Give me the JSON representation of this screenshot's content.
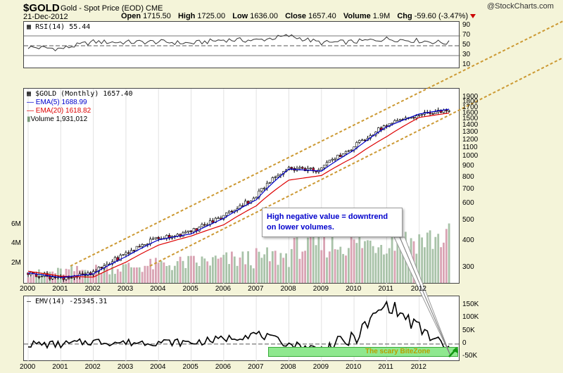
{
  "header": {
    "symbol": "$GOLD",
    "description": "Gold - Spot Price (EOD)",
    "exchange": "CME",
    "date": "21-Dec-2012",
    "open_label": "Open",
    "open": "1715.50",
    "high_label": "High",
    "high": "1725.00",
    "low_label": "Low",
    "low": "1636.00",
    "close_label": "Close",
    "close": "1657.40",
    "volume_label": "Volume",
    "volume": "1.9M",
    "chg_label": "Chg",
    "chg": "-59.60 (-3.47%)",
    "logo": "@StockCharts.com"
  },
  "rsi_panel": {
    "label": "RSI(14) 55.44",
    "ticks": [
      "90",
      "70",
      "50",
      "30",
      "10"
    ],
    "overbought": 70,
    "oversold": 30,
    "mid": 50
  },
  "price_panel": {
    "label": "$GOLD (Monthly) 1657.40",
    "ema5_label": "EMA(5) 1688.99",
    "ema20_label": "EMA(20) 1618.82",
    "volume_label": "Volume 1,931,012",
    "ticks": [
      "1900",
      "1800",
      "1700",
      "1600",
      "1500",
      "1400",
      "1300",
      "1200",
      "1100",
      "1000",
      "900",
      "800",
      "700",
      "600",
      "500",
      "400",
      "300"
    ],
    "volume_ticks": [
      "6M",
      "4M",
      "2M"
    ],
    "colors": {
      "ema5": "#0000cc",
      "ema20": "#dd0000",
      "up_volume": "#a9c3a9",
      "down_volume": "#d9a3b3",
      "channel": "#cc9933"
    }
  },
  "annotation": {
    "line1": "High negative value = downtrend",
    "line2": "on lower volumes."
  },
  "emv_panel": {
    "label": "EMV(14) -25345.31",
    "ticks": [
      "150K",
      "100K",
      "50K",
      "0",
      "-50K"
    ],
    "bite_zone_label": "The scary BiteZone"
  },
  "x_axis": [
    "2000",
    "2001",
    "2002",
    "2003",
    "2004",
    "2005",
    "2006",
    "2007",
    "2008",
    "2009",
    "2010",
    "2011",
    "2012"
  ],
  "chart_data": {
    "type": "line",
    "title": "$GOLD Gold - Spot Price (EOD) CME",
    "x": [
      "2000",
      "2001",
      "2002",
      "2003",
      "2004",
      "2005",
      "2006",
      "2007",
      "2008",
      "2009",
      "2010",
      "2011",
      "2012",
      "2012-12"
    ],
    "series": [
      {
        "name": "$GOLD (Monthly)",
        "values": [
          285,
          270,
          280,
          345,
          415,
          440,
          520,
          640,
          890,
          870,
          1100,
          1400,
          1580,
          1657
        ]
      },
      {
        "name": "EMA(5)",
        "values": [
          285,
          271,
          282,
          340,
          408,
          435,
          515,
          630,
          880,
          860,
          1080,
          1390,
          1600,
          1689
        ]
      },
      {
        "name": "EMA(20)",
        "values": [
          290,
          275,
          272,
          320,
          385,
          425,
          480,
          590,
          780,
          820,
          1000,
          1250,
          1540,
          1619
        ]
      },
      {
        "name": "RSI(14)",
        "values": [
          47,
          44,
          58,
          57,
          58,
          55,
          62,
          61,
          70,
          56,
          58,
          64,
          60,
          55.44
        ]
      },
      {
        "name": "EMV(14)",
        "values": [
          0,
          -2000,
          10000,
          5000,
          8000,
          5000,
          20000,
          40000,
          0,
          -20000,
          20000,
          160000,
          60000,
          -25345.31
        ]
      }
    ],
    "ylim_price": [
      300,
      1950
    ],
    "ylim_rsi": [
      10,
      90
    ],
    "ylim_emv": [
      -50000,
      170000
    ]
  }
}
